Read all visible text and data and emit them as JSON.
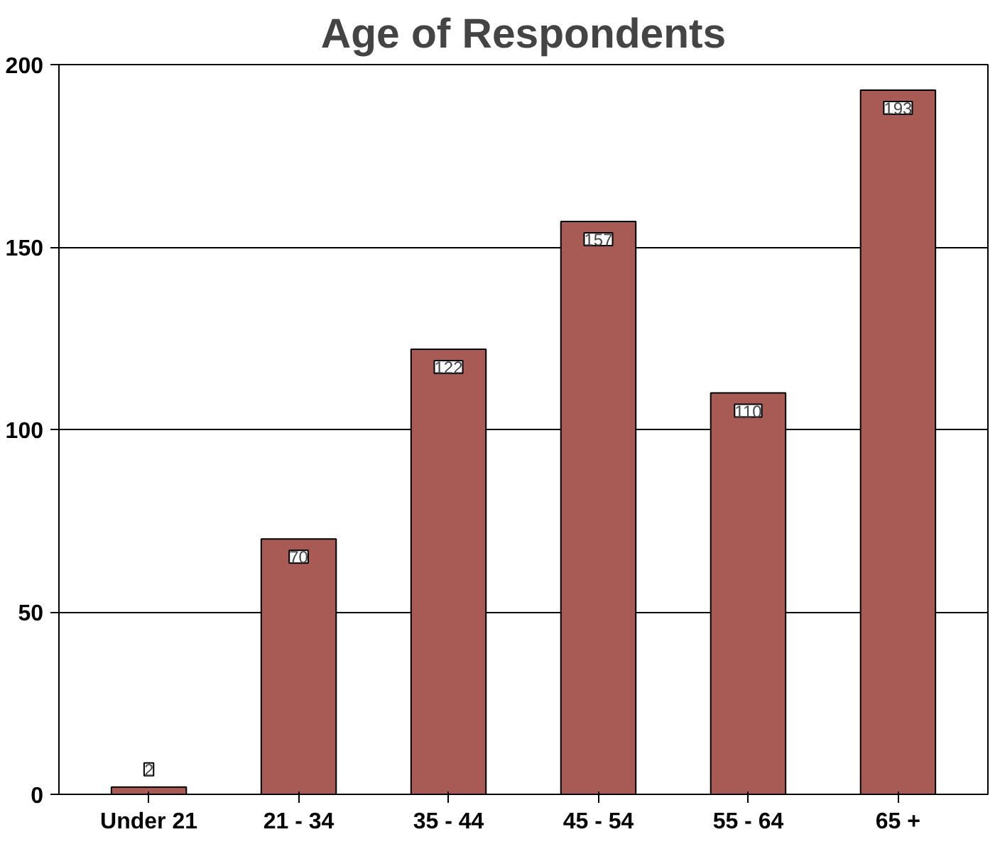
{
  "chart_data": {
    "type": "bar",
    "title": "Age of Respondents",
    "categories": [
      "Under 21",
      "21 - 34",
      "35 - 44",
      "45 - 54",
      "55 - 64",
      "65 +"
    ],
    "values": [
      2,
      70,
      122,
      157,
      110,
      193
    ],
    "color": "#a85a55",
    "ylim": [
      0,
      200
    ],
    "yticks": [
      0,
      50,
      100,
      150,
      200
    ],
    "grid": "y",
    "data_labels": true
  }
}
